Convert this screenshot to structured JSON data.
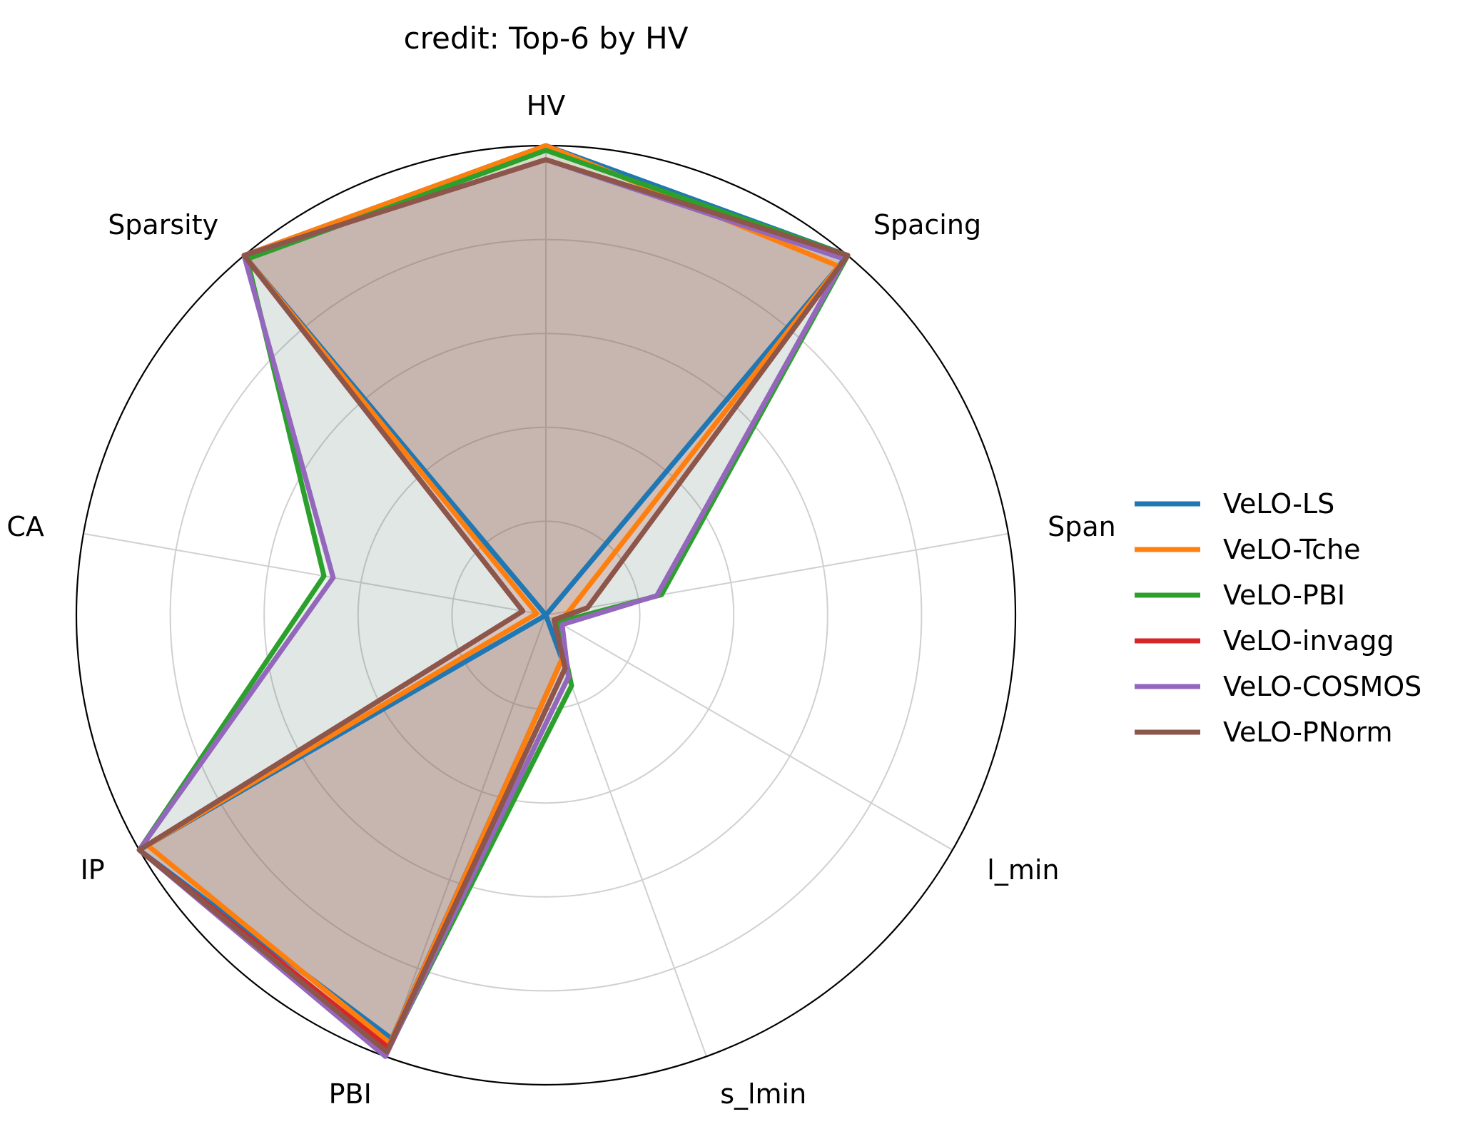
{
  "chart_data": {
    "type": "radar",
    "title": "credit: Top-6 by HV",
    "axes": [
      "HV",
      "Spacing",
      "Span",
      "l_min",
      "s_lmin",
      "PBI",
      "IP",
      "CA",
      "Sparsity"
    ],
    "rlim": [
      0,
      1
    ],
    "grid": true,
    "legend_position": "right",
    "series": [
      {
        "name": "VeLO-LS",
        "color": "#1f77b4",
        "values": [
          1.0,
          1.0,
          0.0,
          0.0,
          0.1,
          0.96,
          1.0,
          0.0,
          1.0
        ]
      },
      {
        "name": "VeLO-Tche",
        "color": "#ff7f0e",
        "values": [
          1.0,
          0.97,
          0.05,
          0.03,
          0.1,
          0.97,
          0.98,
          0.02,
          1.0
        ]
      },
      {
        "name": "VeLO-PBI",
        "color": "#2ca02c",
        "values": [
          0.99,
          1.0,
          0.25,
          0.03,
          0.16,
          0.99,
          1.0,
          0.48,
          0.99
        ]
      },
      {
        "name": "VeLO-invagg",
        "color": "#d62728",
        "values": [
          0.97,
          1.0,
          0.09,
          0.02,
          0.12,
          0.98,
          1.0,
          0.05,
          1.0
        ]
      },
      {
        "name": "VeLO-COSMOS",
        "color": "#9467bd",
        "values": [
          0.97,
          0.99,
          0.24,
          0.04,
          0.14,
          1.0,
          1.0,
          0.46,
          1.0
        ]
      },
      {
        "name": "VeLO-PNorm",
        "color": "#8c564b",
        "values": [
          0.97,
          1.0,
          0.09,
          0.02,
          0.12,
          0.99,
          1.0,
          0.05,
          1.0
        ]
      }
    ]
  }
}
